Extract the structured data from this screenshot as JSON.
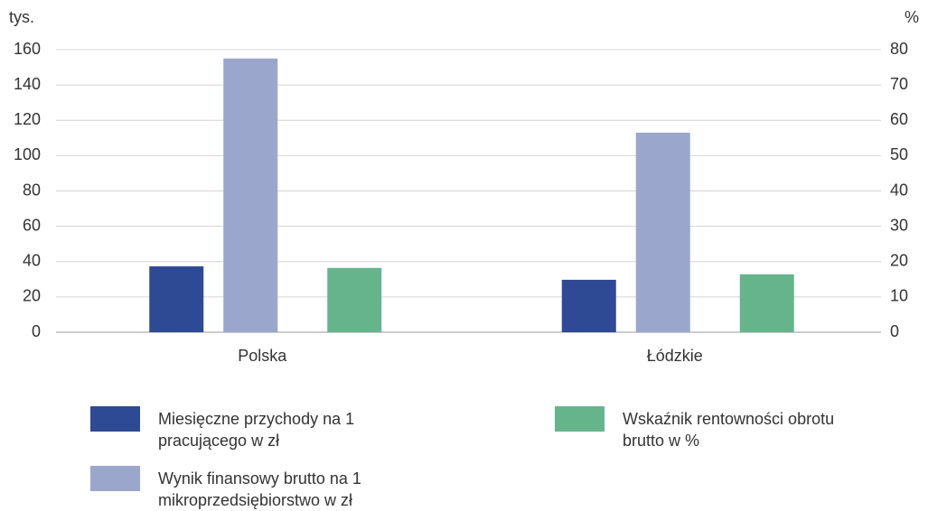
{
  "chart_data": {
    "type": "bar",
    "y_label": "tys.",
    "y2_label": "%",
    "categories": [
      "Polska",
      "Łódzkie"
    ],
    "series": [
      {
        "name": "Miesięczne przychody na 1 pracującego w zł",
        "color": "#2e4a94",
        "values": [
          37.3,
          29.7
        ]
      },
      {
        "name": "Wynik finansowy brutto na 1 mikroprzedsiębiorstwo w zł",
        "color": "#9aa6cc",
        "values": [
          155,
          113
        ]
      },
      {
        "name": "Wskaźnik rentowności obrotu brutto w %",
        "color": "#66b48c",
        "values": [
          18.2,
          16.4
        ],
        "axis": "y2"
      }
    ],
    "ylim": [
      0,
      160
    ],
    "yticks": [
      0,
      20,
      40,
      60,
      80,
      100,
      120,
      140,
      160
    ],
    "y2lim": [
      0,
      80
    ],
    "y2ticks": [
      0,
      10,
      20,
      30,
      40,
      50,
      60,
      70,
      80
    ],
    "grid": true
  }
}
